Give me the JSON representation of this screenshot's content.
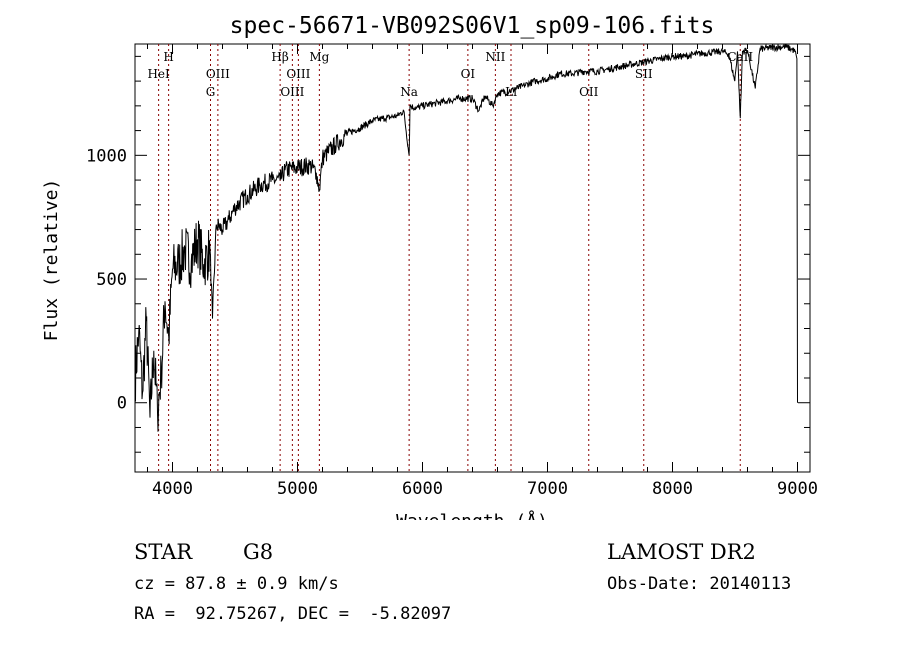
{
  "chart_data": {
    "type": "line",
    "title": "spec-56671-VB092S06V1_sp09-106.fits",
    "xlabel": "Wavelength (Å)",
    "ylabel": "Flux (relative)",
    "xlim": [
      3700,
      9100
    ],
    "ylim": [
      -280,
      1450
    ],
    "xticks": [
      4000,
      5000,
      6000,
      7000,
      8000,
      9000
    ],
    "yticks": [
      0,
      500,
      1000
    ],
    "grid": false,
    "line_color": "#000000",
    "line_marker_color": "#8b0000",
    "series": [
      {
        "x": [
          3700,
          3730,
          3760,
          3790,
          3820,
          3850,
          3880,
          3910,
          3940,
          3970,
          4000,
          4050,
          4100,
          4150,
          4200,
          4250,
          4300,
          4320,
          4350,
          4400,
          4450,
          4500,
          4600,
          4700,
          4800,
          4861,
          4900,
          5000,
          5100,
          5150,
          5175,
          5200,
          5300,
          5400,
          5500,
          5600,
          5700,
          5800,
          5850,
          5893,
          5900,
          5950,
          6000,
          6100,
          6200,
          6300,
          6400,
          6450,
          6500,
          6563,
          6600,
          6700,
          6800,
          6900,
          7000,
          7100,
          7200,
          7300,
          7400,
          7500,
          7600,
          7700,
          7800,
          7900,
          8000,
          8100,
          8200,
          8300,
          8400,
          8450,
          8498,
          8520,
          8542,
          8560,
          8600,
          8662,
          8700,
          8800,
          8900,
          8950,
          8980,
          8995,
          9000
        ],
        "y": [
          90,
          290,
          40,
          330,
          -60,
          210,
          -40,
          120,
          410,
          260,
          540,
          560,
          620,
          570,
          660,
          560,
          620,
          340,
          720,
          700,
          740,
          790,
          840,
          880,
          900,
          900,
          940,
          950,
          960,
          930,
          860,
          990,
          1040,
          1090,
          1110,
          1140,
          1150,
          1160,
          1180,
          1000,
          1200,
          1190,
          1200,
          1210,
          1220,
          1230,
          1230,
          1180,
          1240,
          1200,
          1250,
          1260,
          1280,
          1300,
          1310,
          1330,
          1330,
          1340,
          1340,
          1350,
          1360,
          1370,
          1380,
          1390,
          1400,
          1400,
          1410,
          1415,
          1420,
          1410,
          1300,
          1420,
          1150,
          1420,
          1425,
          1270,
          1430,
          1435,
          1440,
          1430,
          1420,
          1390,
          0
        ]
      }
    ],
    "lines": [
      {
        "name": "HeI",
        "wavelength": 3889,
        "row": 2
      },
      {
        "name": "H",
        "wavelength": 3969,
        "row": 1
      },
      {
        "name": "G",
        "wavelength": 4304,
        "row": 3
      },
      {
        "name": "OIII",
        "wavelength": 4363,
        "row": 2
      },
      {
        "name": "Hβ",
        "wavelength": 4861,
        "row": 1
      },
      {
        "name": "OIII",
        "wavelength": 4959,
        "row": 3
      },
      {
        "name": "OIII",
        "wavelength": 5007,
        "row": 2
      },
      {
        "name": "Mg",
        "wavelength": 5175,
        "row": 1
      },
      {
        "name": "Na",
        "wavelength": 5893,
        "row": 3
      },
      {
        "name": "OI",
        "wavelength": 6363,
        "row": 2
      },
      {
        "name": "NII",
        "wavelength": 6583,
        "row": 1
      },
      {
        "name": "Li",
        "wavelength": 6708,
        "row": 3
      },
      {
        "name": "OII",
        "wavelength": 7330,
        "row": 3
      },
      {
        "name": "SII",
        "wavelength": 7770,
        "row": 2
      },
      {
        "name": "CaII",
        "wavelength": 8542,
        "row": 1
      }
    ]
  },
  "info": {
    "object_class": "STAR",
    "subclass": "G8",
    "survey": "LAMOST DR2",
    "redshift_line": "cz = 87.8 ± 0.9 km/s",
    "obs_date_line": "Obs-Date: 20140113",
    "coords_line": "RA =  92.75267, DEC =  -5.82097"
  }
}
